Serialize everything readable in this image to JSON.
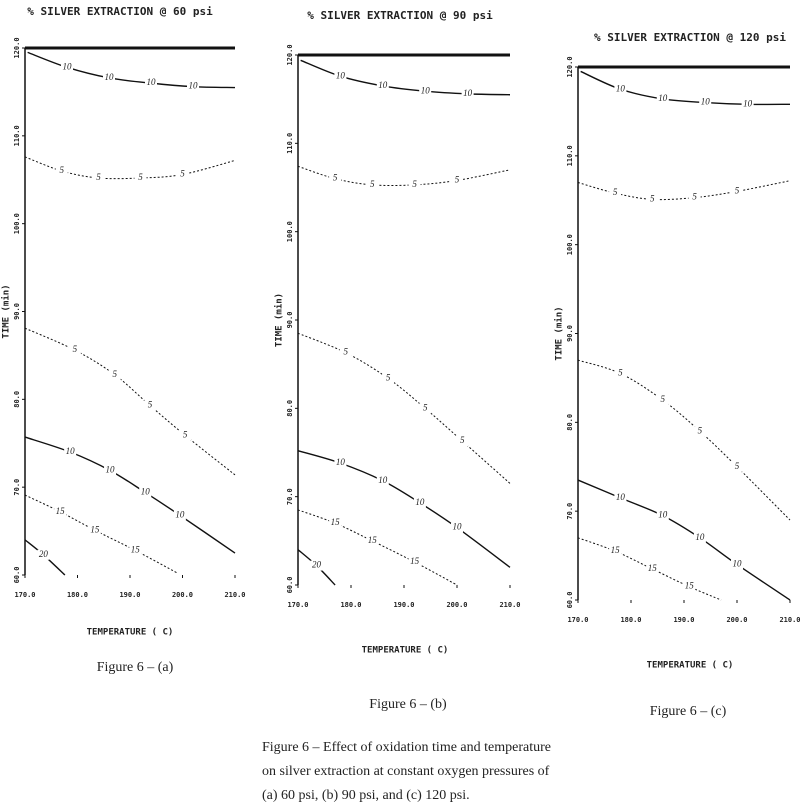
{
  "chart_data": [
    {
      "type": "contour",
      "title": "% SILVER EXTRACTION @ 60 psi",
      "xlabel": "TEMPERATURE ( C)",
      "ylabel": "TIME (min)",
      "caption": "Figure 6 – (a)",
      "xlim": [
        170,
        210
      ],
      "ylim": [
        60,
        120
      ],
      "xticks": [
        {
          "value": 170,
          "label": "170.0"
        },
        {
          "value": 180,
          "label": "180.0"
        },
        {
          "value": 190,
          "label": "190.0"
        },
        {
          "value": 200,
          "label": "200.0"
        },
        {
          "value": 210,
          "label": "210.0"
        }
      ],
      "yticks": [
        {
          "value": 60,
          "label": "60.0"
        },
        {
          "value": 70,
          "label": "70.0"
        },
        {
          "value": 80,
          "label": "80.0"
        },
        {
          "value": 90,
          "label": "90.0"
        },
        {
          "value": 100,
          "label": "100.0"
        },
        {
          "value": 110,
          "label": "110.0"
        },
        {
          "value": 120,
          "label": "120.0"
        }
      ],
      "contours": [
        {
          "level": 10,
          "style": "solid",
          "x": [
            170.5,
            178,
            186,
            194,
            202,
            210
          ],
          "y": [
            119.5,
            117.8,
            116.6,
            116.0,
            115.6,
            115.5
          ]
        },
        {
          "level": 5,
          "style": "dashed",
          "x": [
            170,
            177,
            184,
            192,
            200,
            210
          ],
          "y": [
            107.6,
            106.0,
            105.2,
            105.2,
            105.6,
            107.2
          ]
        },
        {
          "level": 5,
          "style": "dashed",
          "x": [
            170,
            179.5,
            187.1,
            193.8,
            200.5,
            210
          ],
          "y": [
            88.1,
            85.6,
            82.8,
            79.3,
            75.9,
            71.4
          ]
        },
        {
          "level": 10,
          "style": "solid",
          "x": [
            170,
            178.6,
            186.2,
            192.9,
            199.5,
            210
          ],
          "y": [
            75.7,
            74.0,
            71.9,
            69.4,
            66.8,
            62.5
          ]
        },
        {
          "level": 15,
          "style": "dashed",
          "x": [
            170,
            176.7,
            183.3,
            191,
            199.1
          ],
          "y": [
            69.1,
            67.2,
            65.1,
            62.8,
            60.2
          ]
        },
        {
          "level": 20,
          "style": "solid",
          "x": [
            170,
            173.5,
            177.6
          ],
          "y": [
            64.0,
            62.3,
            60
          ]
        }
      ]
    },
    {
      "type": "contour",
      "title": "% SILVER EXTRACTION @ 90 psi",
      "xlabel": "TEMPERATURE ( C)",
      "ylabel": "TIME (min)",
      "caption": "Figure 6 – (b)",
      "xlim": [
        170,
        210
      ],
      "ylim": [
        60,
        120
      ],
      "xticks": [
        {
          "value": 170,
          "label": "170.0"
        },
        {
          "value": 180,
          "label": "180.0"
        },
        {
          "value": 190,
          "label": "190.0"
        },
        {
          "value": 200,
          "label": "200.0"
        },
        {
          "value": 210,
          "label": "210.0"
        }
      ],
      "yticks": [
        {
          "value": 60,
          "label": "60.0"
        },
        {
          "value": 70,
          "label": "70.0"
        },
        {
          "value": 80,
          "label": "80.0"
        },
        {
          "value": 90,
          "label": "90.0"
        },
        {
          "value": 100,
          "label": "100.0"
        },
        {
          "value": 110,
          "label": "110.0"
        },
        {
          "value": 120,
          "label": "120.0"
        }
      ],
      "contours": [
        {
          "level": 10,
          "style": "solid",
          "x": [
            170.5,
            178,
            186,
            194,
            202,
            210
          ],
          "y": [
            119.4,
            117.6,
            116.5,
            115.9,
            115.6,
            115.5
          ]
        },
        {
          "level": 5,
          "style": "dashed",
          "x": [
            170,
            177,
            184,
            192,
            200,
            210
          ],
          "y": [
            107.4,
            106.0,
            105.3,
            105.3,
            105.8,
            107.0
          ]
        },
        {
          "level": 5,
          "style": "dashed",
          "x": [
            170,
            179,
            187,
            194,
            201,
            210
          ],
          "y": [
            88.5,
            86.3,
            83.4,
            80.0,
            76.3,
            71.5
          ]
        },
        {
          "level": 10,
          "style": "solid",
          "x": [
            170,
            178,
            186,
            193,
            200,
            210
          ],
          "y": [
            75.2,
            73.8,
            71.8,
            69.3,
            66.5,
            62.0
          ]
        },
        {
          "level": 15,
          "style": "dashed",
          "x": [
            170,
            177,
            184,
            192,
            200
          ],
          "y": [
            68.5,
            67.0,
            65.0,
            62.6,
            60
          ]
        },
        {
          "level": 20,
          "style": "solid",
          "x": [
            170,
            173.5,
            177
          ],
          "y": [
            64.0,
            62.2,
            60
          ]
        }
      ]
    },
    {
      "type": "contour",
      "title": "% SILVER EXTRACTION @ 120 psi",
      "xlabel": "TEMPERATURE ( C)",
      "ylabel": "TIME (min)",
      "caption": "Figure 6 – (c)",
      "xlim": [
        170,
        210
      ],
      "ylim": [
        60,
        120
      ],
      "xticks": [
        {
          "value": 170,
          "label": "170.0"
        },
        {
          "value": 180,
          "label": "180.0"
        },
        {
          "value": 190,
          "label": "190.0"
        },
        {
          "value": 200,
          "label": "200.0"
        },
        {
          "value": 210,
          "label": "210.0"
        }
      ],
      "yticks": [
        {
          "value": 60,
          "label": "60.0"
        },
        {
          "value": 70,
          "label": "70.0"
        },
        {
          "value": 80,
          "label": "80.0"
        },
        {
          "value": 90,
          "label": "90.0"
        },
        {
          "value": 100,
          "label": "100.0"
        },
        {
          "value": 110,
          "label": "110.0"
        },
        {
          "value": 120,
          "label": "120.0"
        }
      ],
      "contours": [
        {
          "level": 10,
          "style": "solid",
          "x": [
            170.5,
            178,
            186,
            194,
            202,
            210
          ],
          "y": [
            119.5,
            117.5,
            116.4,
            116.0,
            115.8,
            115.8
          ]
        },
        {
          "level": 5,
          "style": "dashed",
          "x": [
            170,
            177,
            184,
            192,
            200,
            210
          ],
          "y": [
            107.0,
            105.8,
            105.1,
            105.3,
            106.0,
            107.2
          ]
        },
        {
          "level": 5,
          "style": "dashed",
          "x": [
            170,
            178,
            186,
            193,
            200,
            210
          ],
          "y": [
            87.0,
            85.5,
            82.5,
            79.0,
            75.0,
            69.0
          ]
        },
        {
          "level": 10,
          "style": "solid",
          "x": [
            170,
            178,
            186,
            193,
            200,
            210
          ],
          "y": [
            73.5,
            71.5,
            69.5,
            67.0,
            64.0,
            60
          ]
        },
        {
          "level": 15,
          "style": "dashed",
          "x": [
            170,
            177,
            184,
            191,
            197
          ],
          "y": [
            67.0,
            65.5,
            63.5,
            61.5,
            60
          ]
        }
      ]
    }
  ],
  "caption": {
    "lines": [
      "Figure 6 – Effect of oxidation time and temperature",
      "on silver extraction at constant oxygen pressures of",
      "(a) 60 psi, (b) 90 psi, and (c) 120 psi."
    ]
  }
}
